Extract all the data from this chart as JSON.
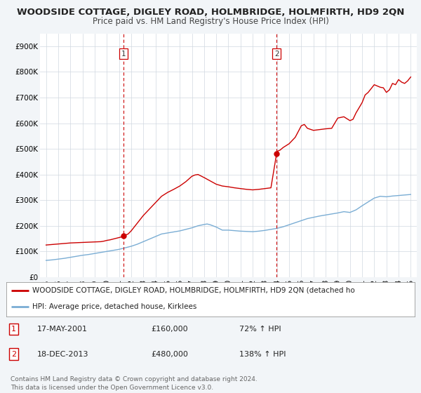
{
  "title": "WOODSIDE COTTAGE, DIGLEY ROAD, HOLMBRIDGE, HOLMFIRTH, HD9 2QN",
  "subtitle": "Price paid vs. HM Land Registry's House Price Index (HPI)",
  "xlim": [
    1994.5,
    2025.5
  ],
  "ylim": [
    0,
    950000
  ],
  "yticks": [
    0,
    100000,
    200000,
    300000,
    400000,
    500000,
    600000,
    700000,
    800000,
    900000
  ],
  "ytick_labels": [
    "£0",
    "£100K",
    "£200K",
    "£300K",
    "£400K",
    "£500K",
    "£600K",
    "£700K",
    "£800K",
    "£900K"
  ],
  "xtick_years": [
    1995,
    1996,
    1997,
    1998,
    1999,
    2000,
    2001,
    2002,
    2003,
    2004,
    2005,
    2006,
    2007,
    2008,
    2009,
    2010,
    2011,
    2012,
    2013,
    2014,
    2015,
    2016,
    2017,
    2018,
    2019,
    2020,
    2021,
    2022,
    2023,
    2024,
    2025
  ],
  "bg_color": "#f2f5f8",
  "plot_bg_color": "#ffffff",
  "grid_color": "#d0d8e0",
  "red_line_color": "#cc0000",
  "blue_line_color": "#7aadd4",
  "marker_color": "#cc0000",
  "vline_color": "#cc0000",
  "purchase1_year": 2001.38,
  "purchase1_value": 160000,
  "purchase2_year": 2013.96,
  "purchase2_value": 480000,
  "legend_label_red": "WOODSIDE COTTAGE, DIGLEY ROAD, HOLMBRIDGE, HOLMFIRTH, HD9 2QN (detached ho",
  "legend_label_blue": "HPI: Average price, detached house, Kirklees",
  "table_row1": [
    "1",
    "17-MAY-2001",
    "£160,000",
    "72% ↑ HPI"
  ],
  "table_row2": [
    "2",
    "18-DEC-2013",
    "£480,000",
    "138% ↑ HPI"
  ],
  "footer_text": "Contains HM Land Registry data © Crown copyright and database right 2024.\nThis data is licensed under the Open Government Licence v3.0.",
  "title_fontsize": 9.5,
  "subtitle_fontsize": 8.5,
  "tick_fontsize": 7.5,
  "legend_fontsize": 7.5,
  "table_fontsize": 8.0,
  "footer_fontsize": 6.5,
  "red_years": [
    1995.0,
    1995.25,
    1995.5,
    1995.75,
    1996.0,
    1996.25,
    1996.5,
    1996.75,
    1997.0,
    1997.25,
    1997.5,
    1997.75,
    1998.0,
    1998.25,
    1998.5,
    1998.75,
    1999.0,
    1999.25,
    1999.5,
    1999.75,
    2000.0,
    2000.25,
    2000.5,
    2000.75,
    2001.0,
    2001.25,
    2001.38,
    2001.5,
    2001.75,
    2002.0,
    2002.5,
    2003.0,
    2003.5,
    2004.0,
    2004.5,
    2005.0,
    2005.5,
    2006.0,
    2006.5,
    2007.0,
    2007.25,
    2007.5,
    2008.0,
    2008.5,
    2009.0,
    2009.5,
    2010.0,
    2010.5,
    2011.0,
    2011.5,
    2012.0,
    2012.5,
    2013.0,
    2013.5,
    2013.96,
    2014.0,
    2014.25,
    2014.5,
    2015.0,
    2015.5,
    2016.0,
    2016.25,
    2016.5,
    2017.0,
    2017.5,
    2018.0,
    2018.5,
    2019.0,
    2019.5,
    2020.0,
    2020.25,
    2020.5,
    2021.0,
    2021.25,
    2021.5,
    2022.0,
    2022.25,
    2022.5,
    2022.75,
    2023.0,
    2023.25,
    2023.5,
    2023.75,
    2024.0,
    2024.25,
    2024.5,
    2024.75,
    2025.0
  ],
  "red_values": [
    125000,
    126000,
    127000,
    128000,
    129000,
    130000,
    131000,
    132000,
    133000,
    133500,
    134000,
    134500,
    135000,
    135500,
    136000,
    136500,
    137000,
    137500,
    138000,
    140000,
    143000,
    145000,
    148000,
    151000,
    154000,
    157000,
    160000,
    163000,
    168000,
    180000,
    210000,
    240000,
    265000,
    290000,
    315000,
    330000,
    342000,
    355000,
    372000,
    393000,
    398000,
    400000,
    388000,
    375000,
    362000,
    355000,
    352000,
    348000,
    345000,
    342000,
    340000,
    342000,
    345000,
    348000,
    480000,
    490000,
    495000,
    505000,
    520000,
    545000,
    590000,
    595000,
    580000,
    572000,
    575000,
    578000,
    580000,
    620000,
    625000,
    610000,
    615000,
    640000,
    680000,
    710000,
    720000,
    750000,
    745000,
    740000,
    738000,
    720000,
    730000,
    755000,
    750000,
    770000,
    760000,
    755000,
    765000,
    780000
  ],
  "blue_years": [
    1995.0,
    1995.5,
    1996.0,
    1996.5,
    1997.0,
    1997.5,
    1998.0,
    1998.5,
    1999.0,
    1999.5,
    2000.0,
    2000.5,
    2001.0,
    2001.5,
    2002.0,
    2002.5,
    2003.0,
    2003.5,
    2004.0,
    2004.5,
    2005.0,
    2005.5,
    2006.0,
    2006.5,
    2007.0,
    2007.5,
    2008.0,
    2008.25,
    2008.5,
    2009.0,
    2009.5,
    2010.0,
    2010.25,
    2010.5,
    2011.0,
    2011.5,
    2012.0,
    2012.5,
    2013.0,
    2013.5,
    2014.0,
    2014.5,
    2015.0,
    2015.5,
    2016.0,
    2016.5,
    2017.0,
    2017.5,
    2018.0,
    2018.5,
    2019.0,
    2019.5,
    2020.0,
    2020.5,
    2021.0,
    2021.5,
    2022.0,
    2022.5,
    2023.0,
    2023.5,
    2024.0,
    2024.5,
    2025.0
  ],
  "blue_values": [
    65000,
    67000,
    70000,
    73000,
    77000,
    81000,
    85000,
    88000,
    92000,
    96000,
    100000,
    104000,
    108000,
    114000,
    120000,
    128000,
    138000,
    148000,
    158000,
    168000,
    172000,
    176000,
    180000,
    186000,
    192000,
    200000,
    205000,
    207000,
    204000,
    195000,
    183000,
    183000,
    182000,
    181000,
    179000,
    178000,
    177000,
    179000,
    182000,
    186000,
    190000,
    196000,
    204000,
    212000,
    220000,
    228000,
    233000,
    238000,
    242000,
    246000,
    250000,
    255000,
    252000,
    262000,
    278000,
    293000,
    308000,
    315000,
    313000,
    316000,
    318000,
    320000,
    322000
  ]
}
